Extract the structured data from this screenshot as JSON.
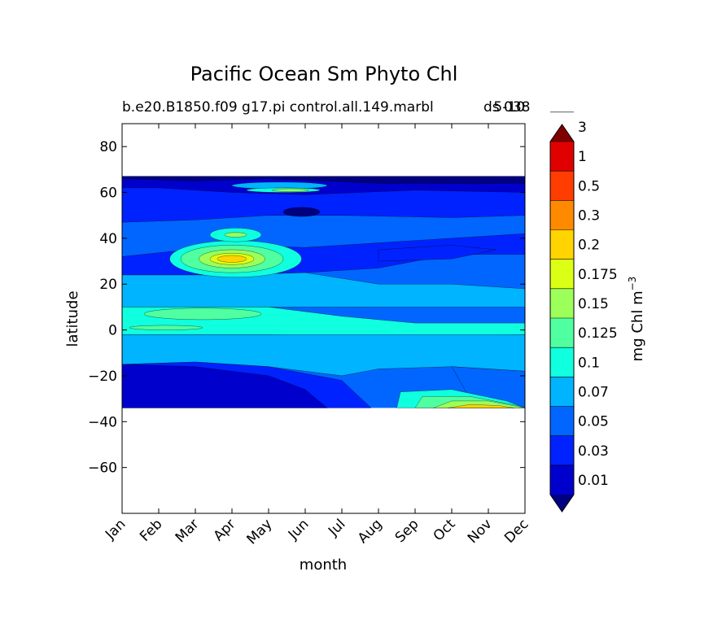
{
  "chart_data": {
    "type": "heatmap",
    "subtype": "filled-contour",
    "title": "Pacific Ocean Sm Phyto Chl",
    "subtitle_left": "b.e20.B1850.f09 g17.pi control.all.149.marbl",
    "subtitle_right": "5-10",
    "subtitle_overlap": "ds 038",
    "xlabel": "month",
    "ylabel": "latitude",
    "x_categories": [
      "Jan",
      "Feb",
      "Mar",
      "Apr",
      "May",
      "Jun",
      "Jul",
      "Aug",
      "Sep",
      "Oct",
      "Nov",
      "Dec"
    ],
    "xlim": [
      0,
      11
    ],
    "ylim": [
      -80,
      90
    ],
    "yticks": [
      -60,
      -40,
      -20,
      0,
      20,
      40,
      60,
      80
    ],
    "data_extent_latitude": [
      -34,
      67
    ],
    "colorbar": {
      "label": "mg Chl m",
      "label_superscript": "−3",
      "extend": "both",
      "levels": [
        "0.01",
        "0.03",
        "0.05",
        "0.07",
        "0.1",
        "0.125",
        "0.15",
        "0.175",
        "0.2",
        "0.3",
        "0.5",
        "1",
        "3"
      ],
      "colors": [
        "#000080",
        "#0000cd",
        "#0022ff",
        "#0066ff",
        "#00b4ff",
        "#10ffdf",
        "#50ffa0",
        "#9cff5a",
        "#dcff16",
        "#ffd400",
        "#ff8a00",
        "#ff3d00",
        "#e00000",
        "#800000"
      ]
    },
    "dominant_bands": [
      {
        "lat_range": [
          60,
          67
        ],
        "value_range": "0.01-0.05",
        "note": "Jan-Dec, with 0.1-0.2 patch near 60N in May-Jun"
      },
      {
        "lat_range": [
          45,
          60
        ],
        "value_range": "0.05-0.07"
      },
      {
        "lat_range": [
          25,
          45
        ],
        "value_range": "0.07-0.1",
        "note": "bloom up to 0.2 near 30N in Apr"
      },
      {
        "lat_range": [
          10,
          25
        ],
        "value_range": "0.1"
      },
      {
        "lat_range": [
          -2,
          10
        ],
        "value_range": "0.125-0.15"
      },
      {
        "lat_range": [
          -15,
          -2
        ],
        "value_range": "0.1"
      },
      {
        "lat_range": [
          -34,
          -15
        ],
        "value_range": "0.03-0.05",
        "note": "0.125-0.2 near 32S in Oct-Dec"
      }
    ]
  }
}
